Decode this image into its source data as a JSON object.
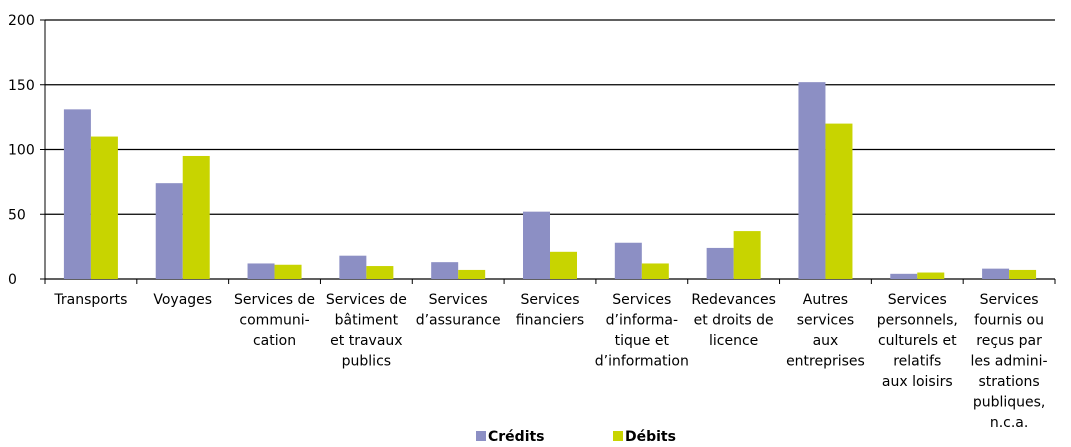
{
  "chart_data": {
    "type": "bar",
    "categories": [
      "Transports",
      "Voyages",
      "Services de\ncommuni-\ncation",
      "Services de\nbâtiment\net travaux\npublics",
      "Services\nd’assurance",
      "Services\nfinanciers",
      "Services\nd’informa-\ntique et\nd’information",
      "Redevances\net droits de\nlicence",
      "Autres\nservices\naux\nentreprises",
      "Services\npersonnels,\nculturels et\nrelatifs\naux loisirs",
      "Services\nfournis ou\nreçus par\nles admini-\nstrations\npubliques,\nn.c.a."
    ],
    "series": [
      {
        "name": "Crédits",
        "color": "#8c8fc4",
        "values": [
          131,
          74,
          12,
          18,
          13,
          52,
          28,
          24,
          152,
          4,
          8
        ]
      },
      {
        "name": "Débits",
        "color": "#c8d400",
        "values": [
          110,
          95,
          11,
          10,
          7,
          21,
          12,
          37,
          120,
          5,
          7
        ]
      }
    ],
    "ylim": [
      0,
      200
    ],
    "yticks": [
      0,
      50,
      100,
      150,
      200
    ],
    "grid": true,
    "legend": "bottom"
  }
}
